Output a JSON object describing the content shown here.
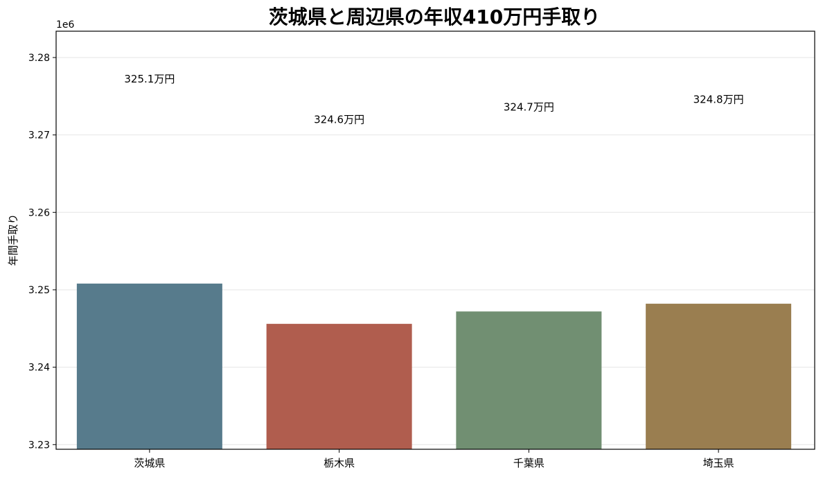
{
  "chart_data": {
    "type": "bar",
    "title": "茨城県と周辺県の年収410万円手取り",
    "ylabel": "年間手取り",
    "xlabel": "",
    "offset_label": "1e6",
    "categories": [
      "茨城県",
      "栃木県",
      "千葉県",
      "埼玉県"
    ],
    "values": [
      3250800,
      3245600,
      3247200,
      3248200
    ],
    "data_labels": [
      "325.1万円",
      "324.6万円",
      "324.7万円",
      "324.8万円"
    ],
    "label_positions": [
      3277200,
      3272000,
      3273600,
      3274600
    ],
    "colors": [
      "#577b8c",
      "#b05d4e",
      "#718f72",
      "#9a7e50"
    ],
    "ylim": [
      3229400,
      3283400
    ],
    "yticks": [
      3230000,
      3240000,
      3250000,
      3260000,
      3270000,
      3280000
    ],
    "ytick_labels": [
      "3.23",
      "3.24",
      "3.25",
      "3.26",
      "3.27",
      "3.28"
    ],
    "grid": true,
    "legend": "none"
  }
}
